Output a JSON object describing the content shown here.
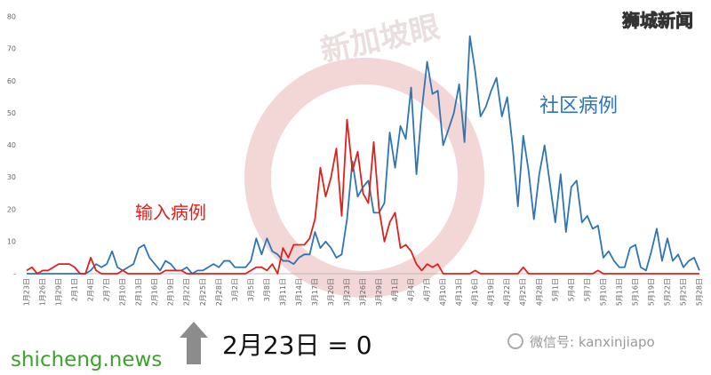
{
  "chart_data": {
    "type": "line",
    "watermark": "新加坡眼",
    "brand": "狮城新闻",
    "annotation": "2月23日 = 0",
    "site": "shicheng.news",
    "wechat": "微信号: kanxinjiapo",
    "categories": [
      "1月23日",
      null,
      null,
      "1月26日",
      null,
      null,
      "1月29日",
      null,
      null,
      "2月1日",
      null,
      null,
      "2月4日",
      null,
      null,
      "2月7日",
      null,
      null,
      "2月10日",
      null,
      null,
      "2月13日",
      null,
      null,
      "2月16日",
      null,
      null,
      "2月19日",
      null,
      null,
      "2月22日",
      null,
      null,
      "2月25日",
      null,
      null,
      "2月28日",
      null,
      null,
      "3月2日",
      null,
      null,
      "3月5日",
      null,
      null,
      "3月8日",
      null,
      null,
      "3月11日",
      null,
      null,
      "3月14日",
      null,
      null,
      "3月17日",
      null,
      null,
      "3月20日",
      null,
      null,
      "3月23日",
      null,
      null,
      "3月26日",
      null,
      null,
      "3月29日",
      null,
      null,
      "4月1日",
      null,
      null,
      "4月4日",
      null,
      null,
      "4月7日",
      null,
      null,
      "4月10日",
      null,
      null,
      "4月13日",
      null,
      null,
      "4月16日",
      null,
      null,
      "4月19日",
      null,
      null,
      "4月22日",
      null,
      null,
      "4月25日",
      null,
      null,
      "4月28日",
      null,
      null,
      "5月1日",
      null,
      null,
      "5月4日",
      null,
      null,
      "5月7日",
      null,
      null,
      "5月10日",
      null,
      null,
      "5月13日",
      null,
      null,
      "5月16日",
      null,
      null,
      "5月19日",
      null,
      null,
      "5月22日",
      null,
      null,
      "5月25日",
      null,
      null,
      "5月28日"
    ],
    "series": [
      {
        "name": "社区病例",
        "color": "#2e75b6",
        "values": [
          0,
          0,
          0,
          0,
          0,
          0,
          0,
          0,
          0,
          0,
          0,
          0,
          1,
          3,
          2,
          3,
          7,
          2,
          1,
          2,
          3,
          8,
          9,
          5,
          3,
          1,
          4,
          3,
          1,
          1,
          2,
          0,
          1,
          1,
          2,
          3,
          2,
          4,
          4,
          2,
          2,
          2,
          4,
          11,
          6,
          11,
          7,
          6,
          4,
          4,
          3,
          5,
          6,
          6,
          13,
          8,
          10,
          8,
          5,
          6,
          17,
          35,
          24,
          27,
          29,
          19,
          19,
          22,
          44,
          33,
          46,
          42,
          58,
          31,
          51,
          66,
          56,
          57,
          40,
          45,
          50,
          59,
          41,
          74,
          63,
          49,
          52,
          57,
          61,
          49,
          55,
          40,
          21,
          43,
          32,
          17,
          31,
          40,
          28,
          16,
          31,
          13,
          27,
          29,
          16,
          18,
          14,
          15,
          5,
          7,
          4,
          2,
          2,
          8,
          9,
          2,
          1,
          7,
          14,
          4,
          11,
          4,
          6,
          2,
          4,
          5,
          1
        ]
      },
      {
        "name": "输入病例",
        "color": "#e0201b",
        "values": [
          1,
          2,
          0,
          1,
          1,
          2,
          3,
          3,
          3,
          2,
          0,
          0,
          5,
          1,
          0,
          0,
          0,
          0,
          1,
          0,
          0,
          0,
          0,
          0,
          0,
          0,
          1,
          1,
          1,
          1,
          0,
          0,
          0,
          0,
          0,
          0,
          0,
          0,
          0,
          0,
          0,
          0,
          1,
          2,
          2,
          1,
          3,
          0,
          8,
          5,
          9,
          9,
          9,
          11,
          17,
          33,
          24,
          30,
          39,
          18,
          48,
          32,
          38,
          25,
          22,
          41,
          20,
          10,
          16,
          19,
          8,
          9,
          7,
          3,
          1,
          3,
          2,
          3,
          0,
          0,
          0,
          0,
          0,
          0,
          1,
          0,
          0,
          0,
          0,
          0,
          0,
          0,
          0,
          2,
          0,
          0,
          0,
          0,
          0,
          0,
          0,
          0,
          0,
          0,
          0,
          0,
          0,
          1,
          0,
          0,
          0,
          0,
          0,
          0,
          0,
          0,
          0,
          0,
          0,
          0,
          0,
          0,
          0,
          0,
          0,
          0,
          0
        ]
      }
    ],
    "ylim": [
      0,
      80
    ],
    "yticks": [
      {
        "value": 0,
        "label": "-"
      },
      10,
      20,
      30,
      40,
      50,
      60,
      70,
      80
    ],
    "grid": false
  }
}
